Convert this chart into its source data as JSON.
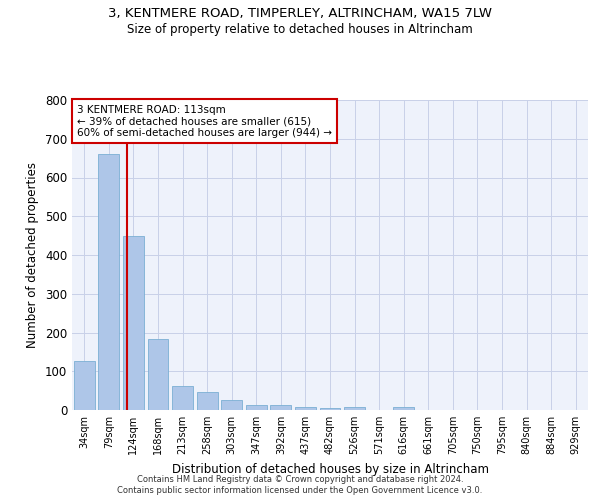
{
  "title": "3, KENTMERE ROAD, TIMPERLEY, ALTRINCHAM, WA15 7LW",
  "subtitle": "Size of property relative to detached houses in Altrincham",
  "xlabel": "Distribution of detached houses by size in Altrincham",
  "ylabel": "Number of detached properties",
  "bar_labels": [
    "34sqm",
    "79sqm",
    "124sqm",
    "168sqm",
    "213sqm",
    "258sqm",
    "303sqm",
    "347sqm",
    "392sqm",
    "437sqm",
    "482sqm",
    "526sqm",
    "571sqm",
    "616sqm",
    "661sqm",
    "705sqm",
    "750sqm",
    "795sqm",
    "840sqm",
    "884sqm",
    "929sqm"
  ],
  "bar_values": [
    127,
    660,
    450,
    183,
    62,
    46,
    27,
    12,
    14,
    9,
    5,
    8,
    0,
    8,
    0,
    0,
    0,
    0,
    0,
    0,
    0
  ],
  "bar_color": "#aec6e8",
  "bar_edge_color": "#7bafd4",
  "property_size": 113,
  "bin_starts": [
    34,
    79,
    124,
    168,
    213,
    258,
    303,
    347,
    392,
    437,
    482,
    526,
    571,
    616,
    661,
    705,
    750,
    795,
    840,
    884,
    929
  ],
  "property_line_label": "3 KENTMERE ROAD: 113sqm",
  "annotation_line1": "← 39% of detached houses are smaller (615)",
  "annotation_line2": "60% of semi-detached houses are larger (944) →",
  "annotation_box_color": "#ffffff",
  "annotation_box_edge_color": "#cc0000",
  "vline_color": "#cc0000",
  "ylim": [
    0,
    800
  ],
  "yticks": [
    0,
    100,
    200,
    300,
    400,
    500,
    600,
    700,
    800
  ],
  "footnote1": "Contains HM Land Registry data © Crown copyright and database right 2024.",
  "footnote2": "Contains public sector information licensed under the Open Government Licence v3.0.",
  "bg_color": "#eef2fb",
  "grid_color": "#c8d0e8",
  "title_fontsize": 9.5,
  "subtitle_fontsize": 8.5
}
